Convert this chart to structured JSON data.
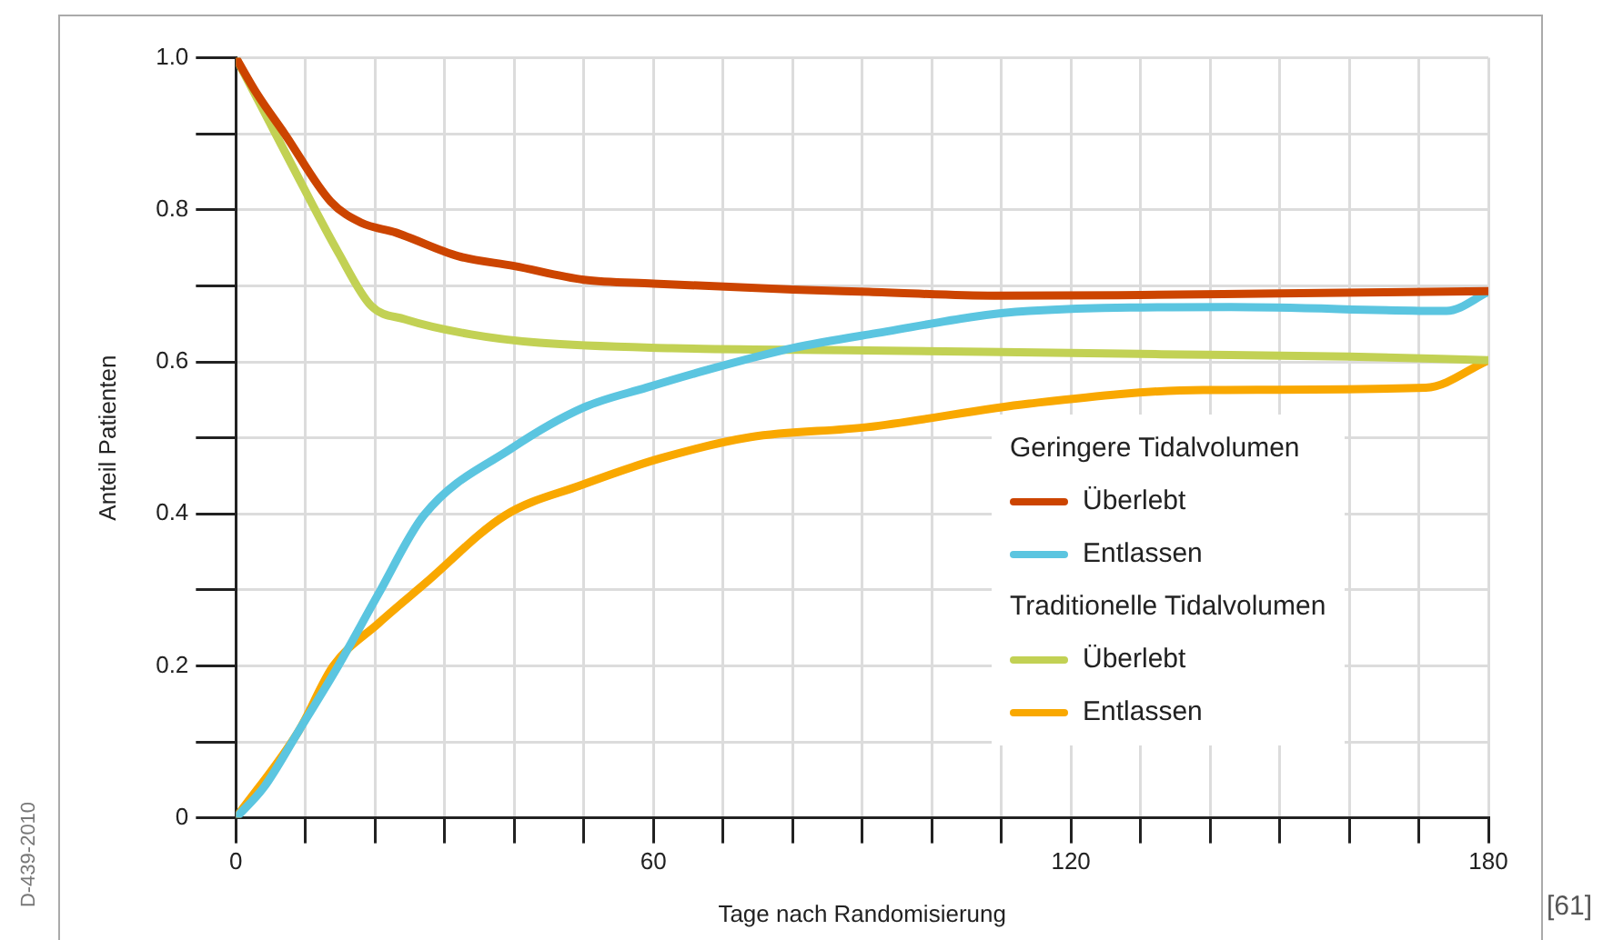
{
  "chart_data": {
    "type": "line",
    "xlabel": "Tage nach Randomisierung",
    "ylabel": "Anteil Patienten",
    "xlim": [
      0,
      180
    ],
    "ylim": [
      0,
      1
    ],
    "xticks": [
      0,
      {
        "value": 10,
        "label": null
      },
      {
        "value": 20,
        "label": null
      },
      {
        "value": 30,
        "label": null
      },
      {
        "value": 40,
        "label": null
      },
      {
        "value": 50,
        "label": null
      },
      60,
      {
        "value": 70,
        "label": null
      },
      {
        "value": 80,
        "label": null
      },
      {
        "value": 90,
        "label": null
      },
      {
        "value": 100,
        "label": null
      },
      {
        "value": 110,
        "label": null
      },
      120,
      {
        "value": 130,
        "label": null
      },
      {
        "value": 140,
        "label": null
      },
      {
        "value": 150,
        "label": null
      },
      {
        "value": 160,
        "label": null
      },
      {
        "value": 170,
        "label": null
      },
      180
    ],
    "yticks": [
      0,
      {
        "value": 0.1,
        "label": null
      },
      0.2,
      {
        "value": 0.3,
        "label": null
      },
      0.4,
      {
        "value": 0.5,
        "label": null
      },
      0.6,
      {
        "value": 0.7,
        "label": null
      },
      0.8,
      {
        "value": 0.9,
        "label": null
      },
      {
        "value": 1,
        "label": "1.0"
      }
    ],
    "grid": true,
    "legend": "bottom right",
    "marker": "none",
    "line_style": "solid",
    "annotations": [
      "Geringere Tidalvolumen",
      "Traditionelle Tidalvolumen",
      "[61]",
      "D-439-2010"
    ],
    "series": [
      {
        "name": "Überlebt",
        "color": "#cc4400",
        "x": [
          0,
          3,
          7,
          13.6,
          18,
          23,
          32,
          40,
          50,
          60,
          80,
          91,
          109,
          130,
          150,
          180
        ],
        "values": [
          1,
          0.953,
          0.9,
          0.811,
          0.783,
          0.77,
          0.739,
          0.726,
          0.708,
          0.703,
          0.695,
          0.692,
          0.687,
          0.688,
          0.69,
          0.693
        ]
      },
      {
        "name": "Entlassen",
        "color": "#5bc5e0",
        "x": [
          0,
          4,
          9,
          14.7,
          20.5,
          27,
          39.6,
          50,
          59,
          67.6,
          80,
          91,
          114,
          143,
          174,
          180
        ],
        "values": [
          0,
          0.04,
          0.114,
          0.2,
          0.295,
          0.398,
          0.486,
          0.54,
          0.566,
          0.589,
          0.618,
          0.636,
          0.667,
          0.672,
          0.667,
          0.692
        ]
      },
      {
        "name": "Überlebt",
        "color": "#c2d154",
        "x": [
          0,
          4,
          7.8,
          14.7,
          19.4,
          24.3,
          33.8,
          43.6,
          62.7,
          90.7,
          133,
          160,
          180
        ],
        "values": [
          1,
          0.93,
          0.863,
          0.744,
          0.674,
          0.656,
          0.636,
          0.625,
          0.618,
          0.615,
          0.61,
          0.607,
          0.602
        ]
      },
      {
        "name": "Entlassen",
        "color": "#f9a800",
        "x": [
          0,
          9,
          14,
          20.5,
          27,
          38.7,
          49.4,
          61,
          74,
          90.7,
          114,
          139,
          171,
          180
        ],
        "values": [
          0,
          0.114,
          0.2,
          0.256,
          0.307,
          0.398,
          0.437,
          0.473,
          0.501,
          0.514,
          0.545,
          0.563,
          0.566,
          0.602
        ]
      }
    ]
  }
}
